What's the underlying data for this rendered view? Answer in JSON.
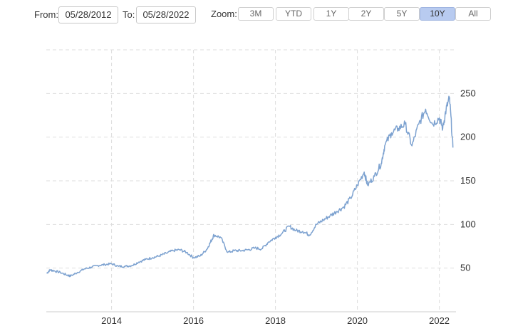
{
  "toolbar": {
    "from_label": "From:",
    "from_value": "05/28/2012",
    "to_label": "To:",
    "to_value": "05/28/2022",
    "zoom_label": "Zoom:",
    "zoom_buttons": [
      "3M",
      "YTD",
      "1Y",
      "2Y",
      "5Y",
      "10Y",
      "All"
    ],
    "active_zoom": "10Y"
  },
  "chart_data": {
    "type": "line",
    "title": "",
    "xlabel": "",
    "ylabel": "",
    "x_ticks": [
      "2014",
      "2016",
      "2018",
      "2020",
      "2022"
    ],
    "y_ticks": [
      50,
      100,
      150,
      200,
      250
    ],
    "ylim": [
      0,
      300
    ],
    "xlim": [
      "2012-05-28",
      "2022-05-28"
    ],
    "grid": true,
    "line_color": "#7da2d0",
    "x": [
      "2012-06",
      "2012-07",
      "2012-08",
      "2012-10",
      "2012-12",
      "2013-01",
      "2013-03",
      "2013-05",
      "2013-07",
      "2013-09",
      "2013-11",
      "2014-01",
      "2014-03",
      "2014-05",
      "2014-07",
      "2014-09",
      "2014-11",
      "2015-01",
      "2015-03",
      "2015-05",
      "2015-07",
      "2015-09",
      "2015-11",
      "2016-01",
      "2016-03",
      "2016-05",
      "2016-06",
      "2016-07",
      "2016-09",
      "2016-11",
      "2017-01",
      "2017-03",
      "2017-05",
      "2017-07",
      "2017-09",
      "2017-11",
      "2018-01",
      "2018-03",
      "2018-05",
      "2018-07",
      "2018-09",
      "2018-11",
      "2019-01",
      "2019-03",
      "2019-05",
      "2019-07",
      "2019-09",
      "2019-11",
      "2020-01",
      "2020-03",
      "2020-04",
      "2020-06",
      "2020-08",
      "2020-09",
      "2020-11",
      "2021-01",
      "2021-03",
      "2021-05",
      "2021-07",
      "2021-09",
      "2021-11",
      "2022-01",
      "2022-02",
      "2022-03",
      "2022-04",
      "2022-05"
    ],
    "values": [
      44,
      48,
      47,
      45,
      42,
      41,
      45,
      49,
      51,
      53,
      54,
      55,
      52,
      52,
      53,
      57,
      60,
      62,
      64,
      67,
      70,
      71,
      68,
      62,
      64,
      72,
      80,
      88,
      85,
      68,
      70,
      70,
      71,
      73,
      72,
      80,
      85,
      90,
      98,
      93,
      92,
      88,
      100,
      105,
      110,
      115,
      120,
      130,
      145,
      160,
      145,
      155,
      170,
      190,
      205,
      210,
      215,
      190,
      215,
      232,
      215,
      222,
      210,
      232,
      245,
      188
    ]
  }
}
